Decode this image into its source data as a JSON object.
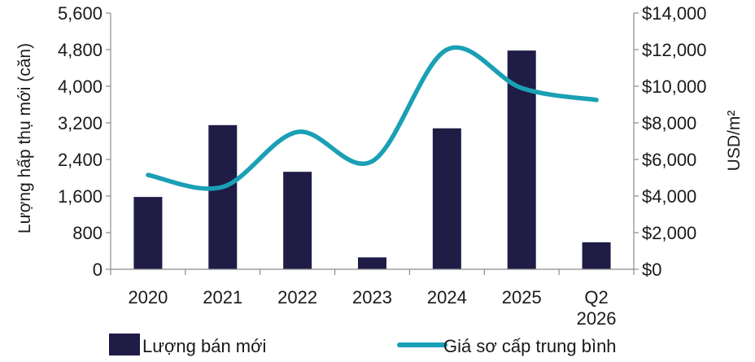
{
  "chart_data": {
    "type": "bar",
    "categories": [
      [
        "2020"
      ],
      [
        "2021"
      ],
      [
        "2022"
      ],
      [
        "2023"
      ],
      [
        "2024"
      ],
      [
        "2025"
      ],
      [
        "Q2",
        "2026"
      ]
    ],
    "series": [
      {
        "name": "Lượng bán mới",
        "type": "bar",
        "axis": "left",
        "color": "#1f1c46",
        "values": [
          1580,
          3150,
          2130,
          260,
          3080,
          4780,
          590
        ]
      },
      {
        "name": "Giá sơ cấp trung bình",
        "type": "line",
        "axis": "right",
        "color": "#1aa0b5",
        "values": [
          5150,
          4500,
          7500,
          5900,
          12000,
          9900,
          9250
        ]
      }
    ],
    "ylabel": "Lượng hấp thụ mới (căn)",
    "y2label": "USD/m²",
    "ylim": [
      0,
      5600
    ],
    "y2lim": [
      0,
      14000
    ],
    "yticks": [
      "0",
      "800",
      "1,600",
      "2,400",
      "3,200",
      "4,000",
      "4,800",
      "5,600"
    ],
    "y2ticks": [
      "$0",
      "$2,000",
      "$4,000",
      "$6,000",
      "$8,000",
      "$10,000",
      "$12,000",
      "$14,000"
    ],
    "grid": false,
    "legend_position": "bottom"
  }
}
